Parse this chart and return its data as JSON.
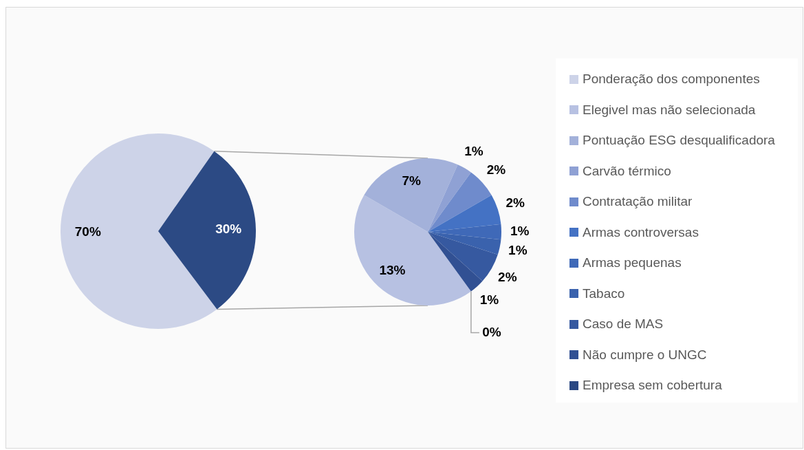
{
  "chart_data": [
    {
      "type": "pie",
      "categories": [
        "Ponderação dos componentes",
        null
      ],
      "values": [
        70,
        30
      ],
      "colors": [
        "#cdd3e8",
        "#2c4a84"
      ],
      "value_labels": [
        "70%",
        "30%"
      ],
      "legend": "right"
    },
    {
      "type": "pie",
      "categories": [
        "Elegivel mas não selecionada",
        "Pontuação ESG desqualificadora",
        "Carvão térmico",
        "Contratação militar",
        "Armas controversas",
        "Armas pequenas",
        "Tabaco",
        "Caso de MAS",
        "Não cumpre o UNGC",
        "Empresa sem cobertura"
      ],
      "values": [
        13,
        7,
        1,
        2,
        2,
        1,
        1,
        2,
        1,
        0
      ],
      "colors": [
        "#b7c1e2",
        "#a3b1da",
        "#8fa1d4",
        "#6f8bcc",
        "#4472c4",
        "#3f69b8",
        "#3a62ad",
        "#3659a0",
        "#315093",
        "#2b4883"
      ],
      "value_labels": [
        "13%",
        "7%",
        "1%",
        "2%",
        "2%",
        "1%",
        "1%",
        "2%",
        "1%",
        "0%"
      ],
      "legend": "right"
    }
  ]
}
